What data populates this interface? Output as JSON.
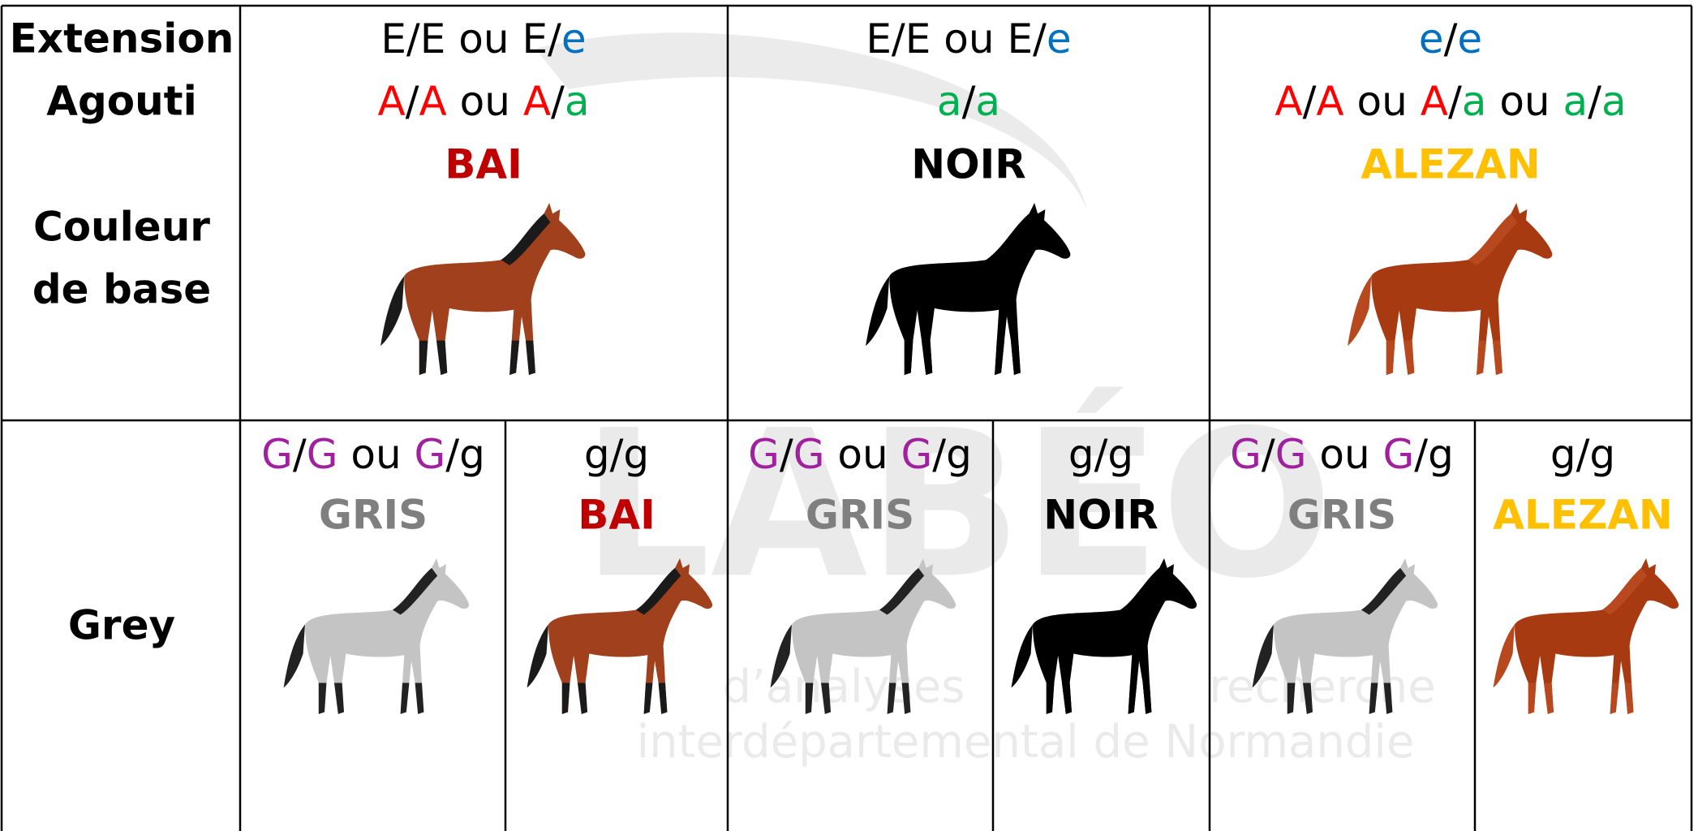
{
  "header_column": {
    "extension": "Extension",
    "agouti": "Agouti",
    "base_color_label": [
      "Couleur",
      "de base"
    ],
    "grey": "Grey"
  },
  "watermark": {
    "logo": "LABÉO",
    "lines": [
      "d’analyses",
      "recherche",
      "interdépartemental de Normandie"
    ]
  },
  "base_colors": [
    {
      "extension": [
        {
          "text": "E/E ou E/",
          "color": "#000000"
        },
        {
          "text": "e",
          "color": "#0070c0"
        }
      ],
      "agouti": [
        {
          "text": "A",
          "color": "#ff0000"
        },
        {
          "text": "/",
          "color": "#000000"
        },
        {
          "text": "A",
          "color": "#ff0000"
        },
        {
          "text": " ou ",
          "color": "#000000"
        },
        {
          "text": "A",
          "color": "#ff0000"
        },
        {
          "text": "/",
          "color": "#000000"
        },
        {
          "text": "a",
          "color": "#00b050"
        }
      ],
      "name": "BAI",
      "name_color": "#c00000",
      "horse_body": "#a0401c",
      "horse_points": "#1a1a1a"
    },
    {
      "extension": [
        {
          "text": "E/E ou E/",
          "color": "#000000"
        },
        {
          "text": "e",
          "color": "#0070c0"
        }
      ],
      "agouti": [
        {
          "text": "a",
          "color": "#00b050"
        },
        {
          "text": "/",
          "color": "#000000"
        },
        {
          "text": "a",
          "color": "#00b050"
        }
      ],
      "name": "NOIR",
      "name_color": "#000000",
      "horse_body": "#000000",
      "horse_points": "#000000"
    },
    {
      "extension": [
        {
          "text": "e",
          "color": "#0070c0"
        },
        {
          "text": "/",
          "color": "#000000"
        },
        {
          "text": "e",
          "color": "#0070c0"
        }
      ],
      "agouti": [
        {
          "text": "A",
          "color": "#ff0000"
        },
        {
          "text": "/",
          "color": "#000000"
        },
        {
          "text": "A",
          "color": "#ff0000"
        },
        {
          "text": " ou ",
          "color": "#000000"
        },
        {
          "text": "A",
          "color": "#ff0000"
        },
        {
          "text": "/",
          "color": "#000000"
        },
        {
          "text": "a",
          "color": "#00b050"
        },
        {
          "text": " ou ",
          "color": "#000000"
        },
        {
          "text": "a",
          "color": "#00b050"
        },
        {
          "text": "/",
          "color": "#000000"
        },
        {
          "text": "a",
          "color": "#00b050"
        }
      ],
      "name": "ALEZAN",
      "name_color": "#ffc000",
      "horse_body": "#a83a12",
      "horse_points": "#b8481e"
    }
  ],
  "grey_cells": [
    {
      "genotype": [
        {
          "text": "G",
          "color": "#a020a0"
        },
        {
          "text": "/",
          "color": "#000000"
        },
        {
          "text": "G",
          "color": "#a020a0"
        },
        {
          "text": " ou ",
          "color": "#000000"
        },
        {
          "text": "G",
          "color": "#a020a0"
        },
        {
          "text": "/g",
          "color": "#000000"
        }
      ],
      "name": "GRIS",
      "name_color": "#7f7f7f",
      "horse_body": "#c4c4c4",
      "horse_points": "#222222"
    },
    {
      "genotype": [
        {
          "text": "g/g",
          "color": "#000000"
        }
      ],
      "name": "BAI",
      "name_color": "#c00000",
      "horse_body": "#a0401c",
      "horse_points": "#1a1a1a"
    },
    {
      "genotype": [
        {
          "text": "G",
          "color": "#a020a0"
        },
        {
          "text": "/",
          "color": "#000000"
        },
        {
          "text": "G",
          "color": "#a020a0"
        },
        {
          "text": " ou ",
          "color": "#000000"
        },
        {
          "text": "G",
          "color": "#a020a0"
        },
        {
          "text": "/g",
          "color": "#000000"
        }
      ],
      "name": "GRIS",
      "name_color": "#7f7f7f",
      "horse_body": "#c4c4c4",
      "horse_points": "#222222"
    },
    {
      "genotype": [
        {
          "text": "g/g",
          "color": "#000000"
        }
      ],
      "name": "NOIR",
      "name_color": "#000000",
      "horse_body": "#000000",
      "horse_points": "#000000"
    },
    {
      "genotype": [
        {
          "text": "G",
          "color": "#a020a0"
        },
        {
          "text": "/",
          "color": "#000000"
        },
        {
          "text": "G",
          "color": "#a020a0"
        },
        {
          "text": " ou ",
          "color": "#000000"
        },
        {
          "text": "G",
          "color": "#a020a0"
        },
        {
          "text": "/g",
          "color": "#000000"
        }
      ],
      "name": "GRIS",
      "name_color": "#7f7f7f",
      "horse_body": "#c4c4c4",
      "horse_points": "#222222"
    },
    {
      "genotype": [
        {
          "text": "g/g",
          "color": "#000000"
        }
      ],
      "name": "ALEZAN",
      "name_color": "#ffc000",
      "horse_body": "#a83a12",
      "horse_points": "#b8481e"
    }
  ]
}
